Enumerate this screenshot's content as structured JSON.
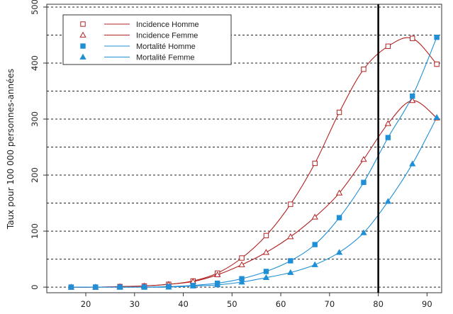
{
  "chart_data": {
    "type": "line",
    "ylabel": "Taux pour 100 000 personnes-années",
    "xlabel": "",
    "xlim": [
      12,
      93
    ],
    "ylim": [
      -10,
      505
    ],
    "x_ticks": [
      20,
      30,
      40,
      50,
      60,
      70,
      80,
      90
    ],
    "y_ticks": [
      0,
      100,
      200,
      300,
      400,
      500
    ],
    "grid": "horizontal dashed every 50",
    "vertical_line_x": 80,
    "legend_position": "top-left",
    "series": [
      {
        "name": "Incidence Homme",
        "color": "#b22222",
        "marker": "open-square",
        "x": [
          17,
          22,
          27,
          32,
          37,
          42,
          47,
          52,
          57,
          62,
          67,
          72,
          77,
          82,
          87,
          92
        ],
        "y": [
          0,
          0,
          1,
          2,
          5,
          11,
          25,
          52,
          92,
          148,
          221,
          312,
          389,
          430,
          444,
          398
        ]
      },
      {
        "name": "Incidence Femme",
        "color": "#b22222",
        "marker": "open-triangle",
        "x": [
          17,
          22,
          27,
          32,
          37,
          42,
          47,
          52,
          57,
          62,
          67,
          72,
          77,
          82,
          87,
          92
        ],
        "y": [
          0,
          0,
          1,
          2,
          5,
          10,
          22,
          40,
          62,
          90,
          125,
          168,
          228,
          292,
          333,
          302
        ]
      },
      {
        "name": "Mortalité Homme",
        "color": "#1f8fd6",
        "marker": "filled-square",
        "x": [
          17,
          22,
          27,
          32,
          37,
          42,
          47,
          52,
          57,
          62,
          67,
          72,
          77,
          82,
          87,
          92
        ],
        "y": [
          0,
          0,
          0,
          0,
          1,
          3,
          7,
          15,
          28,
          47,
          76,
          124,
          187,
          267,
          341,
          446
        ]
      },
      {
        "name": "Mortalité Femme",
        "color": "#1f8fd6",
        "marker": "filled-triangle",
        "x": [
          17,
          22,
          27,
          32,
          37,
          42,
          47,
          52,
          57,
          62,
          67,
          72,
          77,
          82,
          87,
          92
        ],
        "y": [
          0,
          0,
          0,
          0,
          0,
          2,
          4,
          9,
          17,
          26,
          40,
          62,
          97,
          153,
          220,
          303
        ]
      }
    ]
  }
}
